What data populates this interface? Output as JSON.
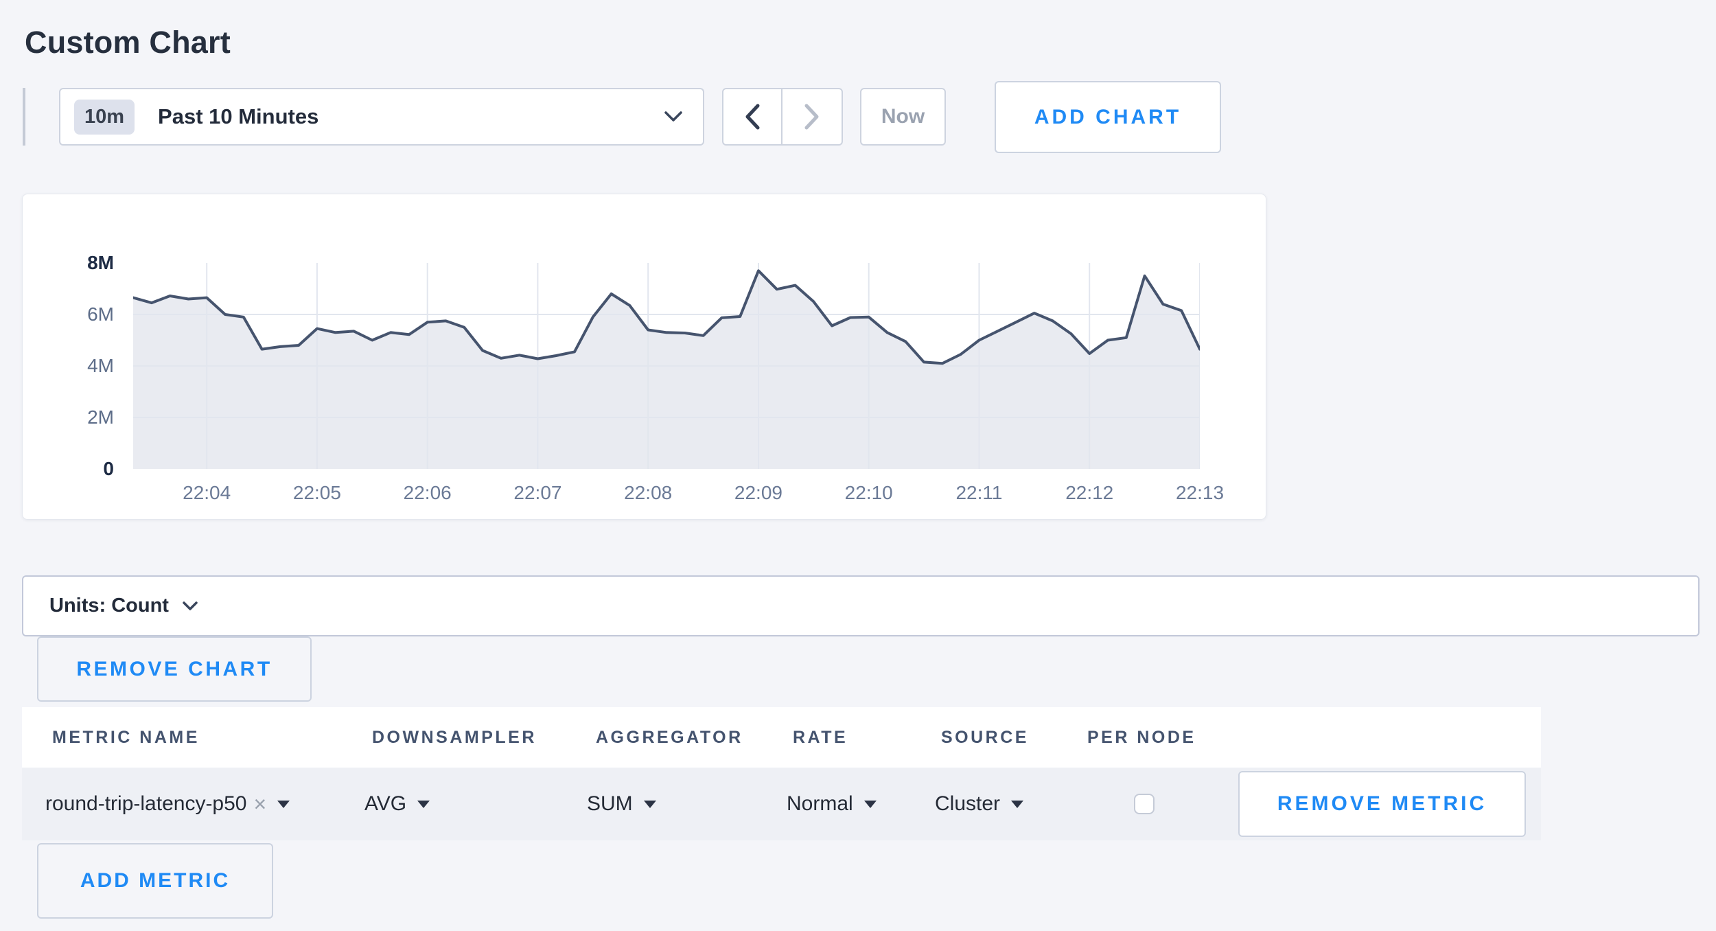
{
  "page": {
    "title": "Custom Chart"
  },
  "colors": {
    "accent_blue": "#1f8af5",
    "page_bg": "#f4f5f9",
    "chart_line": "#46546e",
    "chart_fill": "#e9ebf1",
    "gridline": "#e2e6ee",
    "row_bg": "#eef0f5"
  },
  "toolbar": {
    "range_badge": "10m",
    "range_label": "Past 10 Minutes",
    "now_label": "Now",
    "add_chart_label": "ADD CHART"
  },
  "icons": {
    "remove_x": "×"
  },
  "chart_data": {
    "type": "area",
    "title": "",
    "xlabel": "",
    "ylabel": "",
    "y_max_millions": 8,
    "ylim": [
      0,
      8000000
    ],
    "grid": true,
    "legend": "none",
    "y_axis_labels": [
      {
        "text": "8M",
        "value_millions": 8,
        "strong": true
      },
      {
        "text": "6M",
        "value_millions": 6,
        "strong": false
      },
      {
        "text": "4M",
        "value_millions": 4,
        "strong": false
      },
      {
        "text": "2M",
        "value_millions": 2,
        "strong": false
      },
      {
        "text": "0",
        "value_millions": 0,
        "strong": true
      }
    ],
    "y_gridlines_millions": [
      6,
      4,
      2
    ],
    "x_ticks": [
      "22:04",
      "22:05",
      "22:06",
      "22:07",
      "22:08",
      "22:09",
      "22:10",
      "22:11",
      "22:12",
      "22:13"
    ],
    "x_tick_indices": [
      4,
      10,
      16,
      22,
      28,
      34,
      40,
      46,
      52,
      58
    ],
    "points_interval_seconds": 10,
    "series": [
      {
        "name": "round-trip-latency-p50",
        "values_millions": [
          6.65,
          6.45,
          6.72,
          6.6,
          6.65,
          6.0,
          5.9,
          4.65,
          4.75,
          4.8,
          5.45,
          5.3,
          5.35,
          5.0,
          5.3,
          5.22,
          5.7,
          5.75,
          5.5,
          4.6,
          4.3,
          4.42,
          4.28,
          4.4,
          4.55,
          5.9,
          6.8,
          6.35,
          5.4,
          5.3,
          5.28,
          5.18,
          5.87,
          5.92,
          7.7,
          6.98,
          7.13,
          6.5,
          5.56,
          5.88,
          5.9,
          5.3,
          4.95,
          4.15,
          4.1,
          4.45,
          5.0,
          5.35,
          5.7,
          6.05,
          5.75,
          5.25,
          4.48,
          5.0,
          5.1,
          7.5,
          6.4,
          6.15,
          4.65
        ]
      }
    ]
  },
  "units_bar": {
    "label": "Units: Count"
  },
  "remove_chart_label": "REMOVE CHART",
  "metrics_table": {
    "columns": [
      "METRIC NAME",
      "DOWNSAMPLER",
      "AGGREGATOR",
      "RATE",
      "SOURCE",
      "PER NODE"
    ],
    "rows": [
      {
        "metric_name": "round-trip-latency-p50",
        "downsampler": "AVG",
        "aggregator": "SUM",
        "rate": "Normal",
        "source": "Cluster",
        "per_node_checked": false,
        "remove_label": "REMOVE METRIC"
      }
    ],
    "add_metric_label": "ADD METRIC"
  }
}
